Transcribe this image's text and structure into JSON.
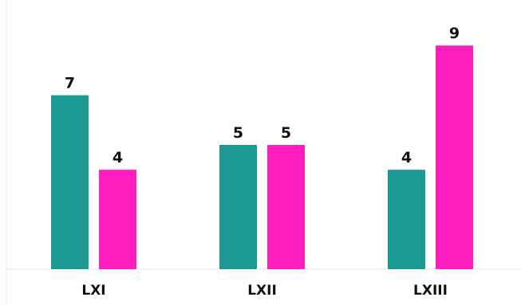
{
  "chart_data": {
    "type": "bar",
    "categories": [
      "LXI",
      "LXII",
      "LXIII"
    ],
    "series": [
      {
        "values": [
          7,
          5,
          4
        ],
        "color": "#1a9a92"
      },
      {
        "values": [
          4,
          5,
          9
        ],
        "color": "#ff1dbd"
      }
    ],
    "ylim": [
      0,
      10
    ],
    "grid": false,
    "legend": "none",
    "title": "",
    "xlabel": "",
    "ylabel": ""
  }
}
